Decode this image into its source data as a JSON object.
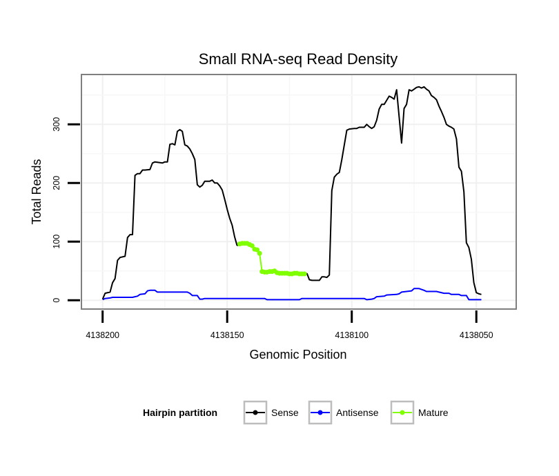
{
  "chart_data": {
    "type": "line",
    "title": "Small RNA-seq Read Density",
    "xlabel": "Genomic Position",
    "ylabel": "Total Reads",
    "xlim": [
      4138208.5,
      4138034
    ],
    "ylim": [
      -15,
      385
    ],
    "x_ticks": [
      4138200,
      4138150,
      4138100,
      4138050
    ],
    "x_tick_labels": [
      "4138200",
      "4138150",
      "4138100",
      "4138050"
    ],
    "y_ticks": [
      0,
      100,
      200,
      300
    ],
    "y_tick_labels": [
      "0",
      "100",
      "200",
      "300"
    ],
    "grid": true,
    "legend": {
      "title": "Hairpin partition",
      "placement": "bottom",
      "entries": [
        {
          "name": "Sense",
          "color": "#000000"
        },
        {
          "name": "Antisense",
          "color": "#0000ff"
        },
        {
          "name": "Mature",
          "color": "#7fff00"
        }
      ]
    },
    "series": [
      {
        "name": "Sense",
        "color": "#000000",
        "style": "line",
        "points": [
          [
            4138200,
            2
          ],
          [
            4138199,
            12
          ],
          [
            4138197,
            14
          ],
          [
            4138196,
            30
          ],
          [
            4138195,
            37
          ],
          [
            4138194,
            68
          ],
          [
            4138193,
            73
          ],
          [
            4138191,
            75
          ],
          [
            4138190,
            107
          ],
          [
            4138189,
            112
          ],
          [
            4138188,
            112
          ],
          [
            4138187,
            213
          ],
          [
            4138186,
            216
          ],
          [
            4138185,
            216
          ],
          [
            4138184,
            222
          ],
          [
            4138183,
            222
          ],
          [
            4138181,
            223
          ],
          [
            4138180,
            234
          ],
          [
            4138179,
            236
          ],
          [
            4138176,
            234
          ],
          [
            4138175,
            236
          ],
          [
            4138174,
            236
          ],
          [
            4138173,
            266
          ],
          [
            4138172,
            267
          ],
          [
            4138171,
            265
          ],
          [
            4138170,
            288
          ],
          [
            4138169,
            291
          ],
          [
            4138168,
            288
          ],
          [
            4138167,
            265
          ],
          [
            4138166,
            263
          ],
          [
            4138165,
            258
          ],
          [
            4138164,
            250
          ],
          [
            4138163,
            240
          ],
          [
            4138162,
            197
          ],
          [
            4138161,
            193
          ],
          [
            4138160,
            196
          ],
          [
            4138159,
            203
          ],
          [
            4138158,
            203
          ],
          [
            4138157,
            203
          ],
          [
            4138156,
            205
          ],
          [
            4138155,
            200
          ],
          [
            4138154,
            200
          ],
          [
            4138153,
            195
          ],
          [
            4138152,
            188
          ],
          [
            4138151,
            172
          ],
          [
            4138150,
            155
          ],
          [
            4138149,
            140
          ],
          [
            4138148,
            128
          ],
          [
            4138147,
            108
          ],
          [
            4138146,
            93
          ],
          [
            4138118,
            46
          ],
          [
            4138117,
            35
          ],
          [
            4138116,
            34
          ],
          [
            4138114,
            34
          ],
          [
            4138113,
            34
          ],
          [
            4138112,
            40
          ],
          [
            4138111,
            40
          ],
          [
            4138110,
            39
          ],
          [
            4138109,
            43
          ],
          [
            4138108,
            187
          ],
          [
            4138107,
            210
          ],
          [
            4138106,
            215
          ],
          [
            4138105,
            218
          ],
          [
            4138104,
            240
          ],
          [
            4138103,
            265
          ],
          [
            4138102,
            290
          ],
          [
            4138101,
            292
          ],
          [
            4138099,
            293
          ],
          [
            4138098,
            293
          ],
          [
            4138097,
            295
          ],
          [
            4138095,
            295
          ],
          [
            4138094,
            300
          ],
          [
            4138093,
            296
          ],
          [
            4138092,
            293
          ],
          [
            4138091,
            296
          ],
          [
            4138090,
            307
          ],
          [
            4138089,
            326
          ],
          [
            4138088,
            334
          ],
          [
            4138087,
            334
          ],
          [
            4138086,
            341
          ],
          [
            4138085,
            348
          ],
          [
            4138084,
            346
          ],
          [
            4138083,
            343
          ],
          [
            4138082,
            359
          ],
          [
            4138080,
            268
          ],
          [
            4138079,
            327
          ],
          [
            4138078,
            334
          ],
          [
            4138077,
            359
          ],
          [
            4138076,
            357
          ],
          [
            4138075,
            360
          ],
          [
            4138074,
            363
          ],
          [
            4138073,
            364
          ],
          [
            4138072,
            362
          ],
          [
            4138071,
            364
          ],
          [
            4138070,
            360
          ],
          [
            4138069,
            357
          ],
          [
            4138068,
            349
          ],
          [
            4138067,
            346
          ],
          [
            4138066,
            342
          ],
          [
            4138065,
            331
          ],
          [
            4138064,
            322
          ],
          [
            4138063,
            312
          ],
          [
            4138062,
            300
          ],
          [
            4138061,
            297
          ],
          [
            4138060,
            295
          ],
          [
            4138059,
            292
          ],
          [
            4138058,
            275
          ],
          [
            4138057,
            227
          ],
          [
            4138056,
            220
          ],
          [
            4138055,
            185
          ],
          [
            4138054,
            98
          ],
          [
            4138053,
            90
          ],
          [
            4138052,
            70
          ],
          [
            4138051,
            30
          ],
          [
            4138050,
            13
          ],
          [
            4138049,
            11
          ],
          [
            4138048,
            10
          ]
        ]
      },
      {
        "name": "Antisense",
        "color": "#0000ff",
        "style": "line",
        "points": [
          [
            4138200,
            1
          ],
          [
            4138199,
            3
          ],
          [
            4138197,
            4
          ],
          [
            4138196,
            5
          ],
          [
            4138188,
            5
          ],
          [
            4138187,
            6
          ],
          [
            4138186,
            7
          ],
          [
            4138185,
            10
          ],
          [
            4138183,
            11
          ],
          [
            4138182,
            16
          ],
          [
            4138181,
            17
          ],
          [
            4138179,
            17
          ],
          [
            4138178,
            14
          ],
          [
            4138166,
            14
          ],
          [
            4138165,
            12
          ],
          [
            4138164,
            8
          ],
          [
            4138162,
            8
          ],
          [
            4138161,
            2
          ],
          [
            4138160,
            2
          ],
          [
            4138159,
            3
          ],
          [
            4138135,
            3
          ],
          [
            4138134,
            1
          ],
          [
            4138121,
            1
          ],
          [
            4138120,
            3
          ],
          [
            4138095,
            3
          ],
          [
            4138094,
            1
          ],
          [
            4138092,
            2
          ],
          [
            4138091,
            3
          ],
          [
            4138090,
            6
          ],
          [
            4138087,
            7
          ],
          [
            4138086,
            9
          ],
          [
            4138082,
            10
          ],
          [
            4138081,
            11
          ],
          [
            4138080,
            14
          ],
          [
            4138078,
            15
          ],
          [
            4138076,
            16
          ],
          [
            4138075,
            20
          ],
          [
            4138073,
            20
          ],
          [
            4138071,
            17
          ],
          [
            4138070,
            15
          ],
          [
            4138066,
            15
          ],
          [
            4138065,
            14
          ],
          [
            4138063,
            12
          ],
          [
            4138061,
            12
          ],
          [
            4138060,
            10
          ],
          [
            4138057,
            10
          ],
          [
            4138056,
            8
          ],
          [
            4138054,
            8
          ],
          [
            4138053,
            1
          ],
          [
            4138048,
            1
          ]
        ]
      },
      {
        "name": "Mature",
        "color": "#7fff00",
        "style": "line+points",
        "points": [
          [
            4138145,
            96
          ],
          [
            4138144,
            97
          ],
          [
            4138143,
            97
          ],
          [
            4138142,
            97
          ],
          [
            4138141,
            95
          ],
          [
            4138140,
            93
          ],
          [
            4138139,
            87
          ],
          [
            4138138,
            86
          ],
          [
            4138137,
            80
          ],
          [
            4138136,
            49
          ],
          [
            4138135,
            48
          ],
          [
            4138134,
            48
          ],
          [
            4138133,
            49
          ],
          [
            4138132,
            49
          ],
          [
            4138131,
            50
          ],
          [
            4138130,
            47
          ],
          [
            4138129,
            46
          ],
          [
            4138128,
            46
          ],
          [
            4138127,
            46
          ],
          [
            4138126,
            46
          ],
          [
            4138125,
            45
          ],
          [
            4138124,
            45
          ],
          [
            4138123,
            46
          ],
          [
            4138122,
            46
          ],
          [
            4138121,
            45
          ],
          [
            4138120,
            45
          ],
          [
            4138119,
            45
          ]
        ]
      }
    ]
  }
}
